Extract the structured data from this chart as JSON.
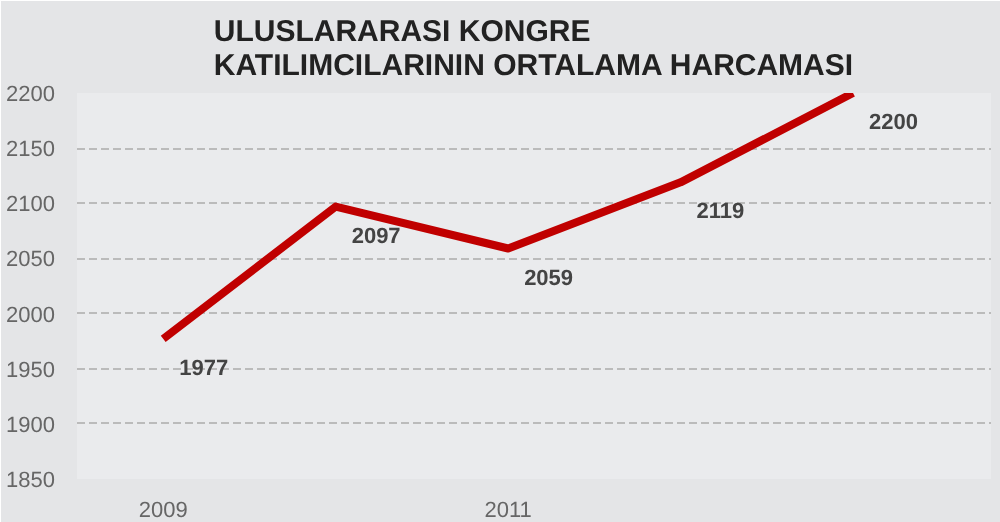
{
  "chart_data": {
    "type": "line",
    "title": "ULUSLARARASI KONGRE KATILIMCILARININ ORTALAMA HARCAMASI",
    "categories": [
      "2009",
      null,
      "2011",
      null,
      null
    ],
    "series": [
      {
        "color": "#c00000",
        "values": [
          1977,
          2097,
          2059,
          2119,
          2200
        ]
      }
    ],
    "ylim": [
      1850,
      2200
    ],
    "yticks": [
      1850,
      1900,
      1950,
      2000,
      2050,
      2100,
      2150,
      2200
    ],
    "grid": "y",
    "data_labels": true,
    "marker": "none",
    "line_style": "solid"
  }
}
